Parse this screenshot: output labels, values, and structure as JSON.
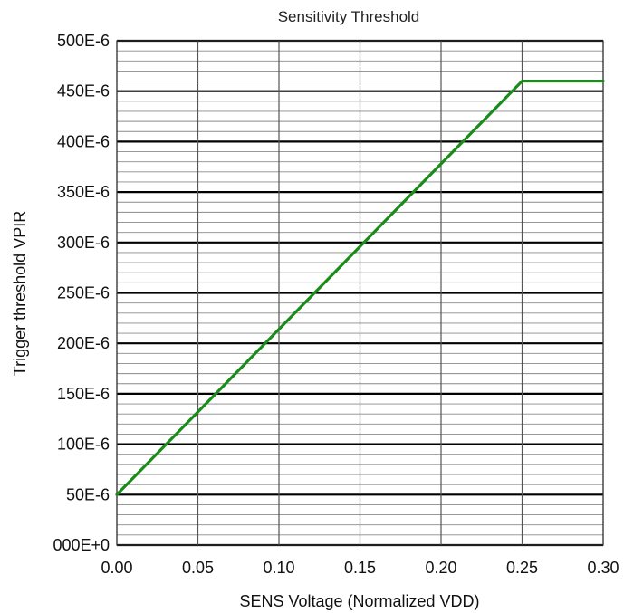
{
  "chart_data": {
    "type": "line",
    "title": "Sensitivity Threshold",
    "xlabel": "SENS Voltage (Normalized VDD)",
    "ylabel": "Trigger threshold VPIR",
    "xlim": [
      0,
      0.3
    ],
    "ylim": [
      0,
      0.0005
    ],
    "x_ticks": [
      0,
      0.05,
      0.1,
      0.15,
      0.2,
      0.25,
      0.3
    ],
    "x_tick_labels": [
      "0.00",
      "0.05",
      "0.10",
      "0.15",
      "0.20",
      "0.25",
      "0.30"
    ],
    "y_ticks": [
      0,
      5e-05,
      0.0001,
      0.00015,
      0.0002,
      0.00025,
      0.0003,
      0.00035,
      0.0004,
      0.00045,
      0.0005
    ],
    "y_tick_labels": [
      "000E+0",
      "50E-6",
      "100E-6",
      "150E-6",
      "200E-6",
      "250E-6",
      "300E-6",
      "350E-6",
      "400E-6",
      "450E-6",
      "500E-6"
    ],
    "grid": true,
    "minor_grid_y_step": 1e-05,
    "line_color": "#1a8c1a",
    "series": [
      {
        "x": [
          0,
          0.25,
          0.3
        ],
        "values": [
          5e-05,
          0.00046,
          0.00046
        ]
      }
    ]
  }
}
